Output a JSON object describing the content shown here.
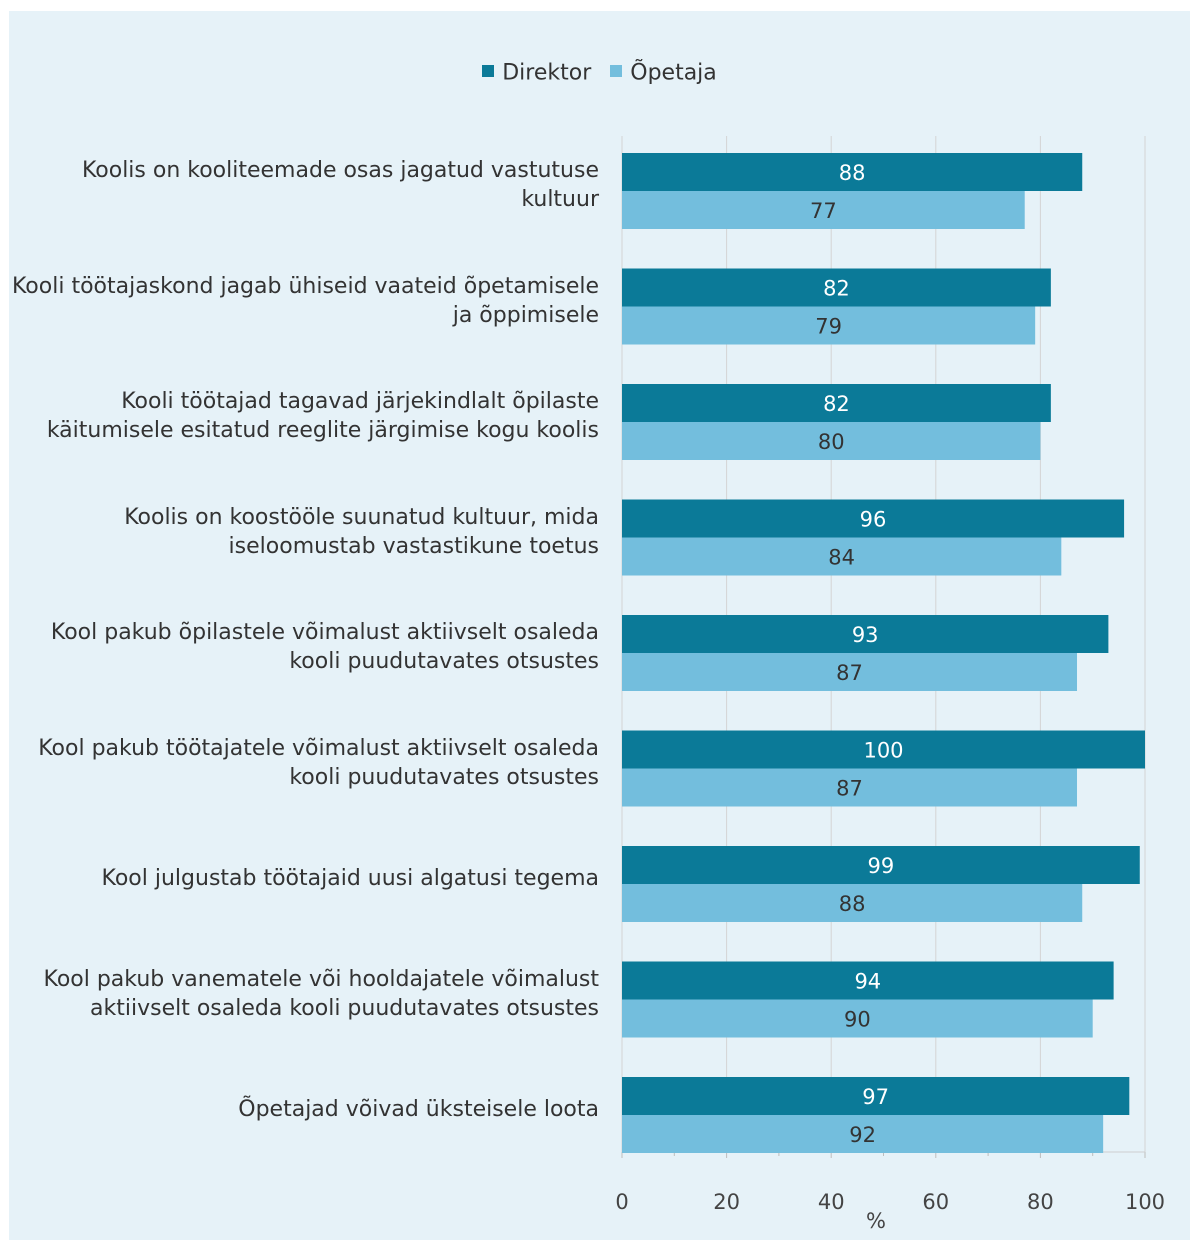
{
  "chart_data": {
    "type": "bar",
    "orientation": "horizontal",
    "categories": [
      "Koolis on kooliteemade osas jagatud vastutuse kultuur",
      "Kooli töötajaskond jagab ühiseid vaateid õpetamisele ja õppimisele",
      "Kooli töötajad tagavad järjekindlalt õpilaste käitumisele esitatud reeglite järgimise kogu koolis",
      "Koolis on koostööle suunatud kultuur, mida iseloomustab vastastikune toetus",
      "Kool pakub õpilastele võimalust aktiivselt osaleda kooli puudutavates otsustes",
      "Kool pakub töötajatele võimalust aktiivselt osaleda kooli puudutavates otsustes",
      "Kool julgustab töötajaid uusi algatusi tegema",
      "Kool pakub vanematele või hooldajatele võimalust aktiivselt osaleda kooli puudutavates otsustes",
      "Õpetajad võivad üksteisele loota"
    ],
    "series": [
      {
        "name": "Direktor",
        "color": "#0b7a98",
        "values": [
          88,
          82,
          82,
          96,
          93,
          100,
          99,
          94,
          97
        ]
      },
      {
        "name": "Õpetaja",
        "color": "#73bedd",
        "values": [
          77,
          79,
          80,
          84,
          87,
          87,
          88,
          90,
          92
        ]
      }
    ],
    "xlim": [
      0,
      100
    ],
    "xticks": [
      "0",
      "20",
      "40",
      "60",
      "80",
      "100"
    ],
    "xlabel": "%",
    "grid": true,
    "legend_position": "top"
  },
  "colors": {
    "background": "#e6f2f8",
    "grid": "#d4d4d4",
    "text": "#333333"
  }
}
